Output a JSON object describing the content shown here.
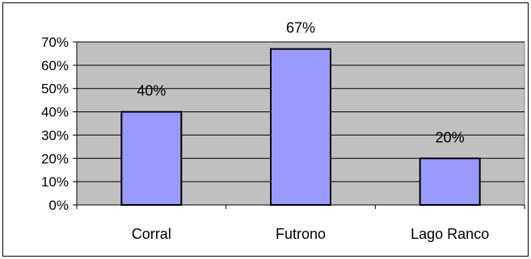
{
  "chart_data": {
    "type": "bar",
    "title": "",
    "xlabel": "",
    "ylabel": "",
    "categories": [
      "Corral",
      "Futrono",
      "Lago Ranco"
    ],
    "values": [
      40,
      67,
      20
    ],
    "data_labels": [
      "40%",
      "67%",
      "20%"
    ],
    "ylim": [
      0,
      70
    ],
    "y_ticks": [
      0,
      10,
      20,
      30,
      40,
      50,
      60,
      70
    ],
    "y_tick_labels": [
      "0%",
      "10%",
      "20%",
      "30%",
      "40%",
      "50%",
      "60%",
      "70%"
    ],
    "grid": true,
    "legend": "none",
    "colors": {
      "plot_background": "#c0c0c0",
      "bar_fill": "#9999ff",
      "bar_stroke": "#000000",
      "gridline": "#000000"
    }
  }
}
